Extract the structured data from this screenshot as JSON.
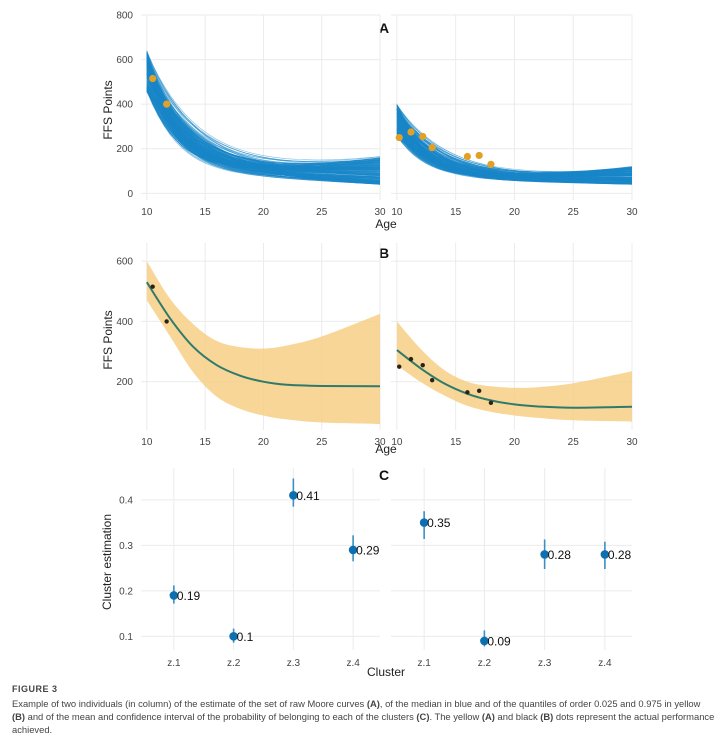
{
  "chart_data": [
    {
      "panel": "A",
      "type": "line",
      "title": "A",
      "xlabel": "Age",
      "ylabel": "FFS Points",
      "xlim": [
        9.5,
        30
      ],
      "ylim": [
        -30,
        800
      ],
      "xticks": [
        "10",
        "15",
        "20",
        "25",
        "30"
      ],
      "yticks": [
        "0",
        "200",
        "400",
        "600",
        "800"
      ],
      "description_series": "set of raw Moore curves (blue)",
      "facets": [
        {
          "observed_points": [
            {
              "x": 10.5,
              "y": 515
            },
            {
              "x": 11.7,
              "y": 400
            }
          ],
          "curve_band": {
            "start": [
              455,
              640
            ],
            "base": [
              105,
              95
            ],
            "end_low": [
              40,
              130
            ],
            "end_high": [
              160,
              800
            ]
          }
        },
        {
          "observed_points": [
            {
              "x": 10.2,
              "y": 250
            },
            {
              "x": 11.2,
              "y": 275
            },
            {
              "x": 12.2,
              "y": 255
            },
            {
              "x": 13.0,
              "y": 205
            },
            {
              "x": 16.0,
              "y": 165
            },
            {
              "x": 17.0,
              "y": 170
            },
            {
              "x": 18.0,
              "y": 130
            }
          ],
          "curve_band": {
            "start": [
              255,
              400
            ],
            "base": [
              70,
              60
            ],
            "end_low": [
              40,
              60
            ],
            "end_high": [
              120,
              380
            ]
          }
        }
      ]
    },
    {
      "panel": "B",
      "type": "area",
      "title": "B",
      "xlabel": "Age",
      "ylabel": "FFS Points",
      "xlim": [
        9.5,
        30
      ],
      "ylim": [
        40,
        660
      ],
      "xticks": [
        "10",
        "15",
        "20",
        "25",
        "30"
      ],
      "yticks": [
        "200",
        "400",
        "600"
      ],
      "facets": [
        {
          "median": [
            {
              "x": 10,
              "y": 530
            },
            {
              "x": 12,
              "y": 410
            },
            {
              "x": 14,
              "y": 315
            },
            {
              "x": 16,
              "y": 255
            },
            {
              "x": 18,
              "y": 220
            },
            {
              "x": 20,
              "y": 200
            },
            {
              "x": 22,
              "y": 190
            },
            {
              "x": 25,
              "y": 186
            },
            {
              "x": 30,
              "y": 185
            }
          ],
          "q025": [
            {
              "x": 10,
              "y": 470
            },
            {
              "x": 12,
              "y": 350
            },
            {
              "x": 14,
              "y": 230
            },
            {
              "x": 16,
              "y": 150
            },
            {
              "x": 18,
              "y": 110
            },
            {
              "x": 20,
              "y": 88
            },
            {
              "x": 22,
              "y": 75
            },
            {
              "x": 25,
              "y": 65
            },
            {
              "x": 30,
              "y": 60
            }
          ],
          "q975": [
            {
              "x": 10,
              "y": 600
            },
            {
              "x": 12,
              "y": 475
            },
            {
              "x": 14,
              "y": 390
            },
            {
              "x": 16,
              "y": 335
            },
            {
              "x": 18,
              "y": 315
            },
            {
              "x": 20,
              "y": 310
            },
            {
              "x": 22,
              "y": 320
            },
            {
              "x": 25,
              "y": 350
            },
            {
              "x": 30,
              "y": 425
            }
          ],
          "observed_points": [
            {
              "x": 10.5,
              "y": 515
            },
            {
              "x": 11.7,
              "y": 400
            }
          ]
        },
        {
          "median": [
            {
              "x": 10,
              "y": 305
            },
            {
              "x": 12,
              "y": 245
            },
            {
              "x": 14,
              "y": 195
            },
            {
              "x": 16,
              "y": 160
            },
            {
              "x": 18,
              "y": 138
            },
            {
              "x": 20,
              "y": 125
            },
            {
              "x": 22,
              "y": 118
            },
            {
              "x": 25,
              "y": 114
            },
            {
              "x": 30,
              "y": 117
            }
          ],
          "q025": [
            {
              "x": 10,
              "y": 255
            },
            {
              "x": 12,
              "y": 200
            },
            {
              "x": 14,
              "y": 155
            },
            {
              "x": 16,
              "y": 120
            },
            {
              "x": 18,
              "y": 100
            },
            {
              "x": 20,
              "y": 88
            },
            {
              "x": 22,
              "y": 80
            },
            {
              "x": 25,
              "y": 72
            },
            {
              "x": 30,
              "y": 68
            }
          ],
          "q975": [
            {
              "x": 10,
              "y": 400
            },
            {
              "x": 12,
              "y": 310
            },
            {
              "x": 14,
              "y": 240
            },
            {
              "x": 16,
              "y": 200
            },
            {
              "x": 18,
              "y": 185
            },
            {
              "x": 20,
              "y": 180
            },
            {
              "x": 22,
              "y": 182
            },
            {
              "x": 25,
              "y": 195
            },
            {
              "x": 30,
              "y": 235
            }
          ],
          "observed_points": [
            {
              "x": 10.2,
              "y": 250
            },
            {
              "x": 11.2,
              "y": 275
            },
            {
              "x": 12.2,
              "y": 255
            },
            {
              "x": 13.0,
              "y": 205
            },
            {
              "x": 16.0,
              "y": 165
            },
            {
              "x": 17.0,
              "y": 170
            },
            {
              "x": 18.0,
              "y": 130
            }
          ]
        }
      ]
    },
    {
      "panel": "C",
      "type": "scatter",
      "title": "C",
      "xlabel": "Cluster",
      "ylabel": "Cluster estimation",
      "ylim": [
        0.07,
        0.47
      ],
      "yticks": [
        "0.1",
        "0.2",
        "0.3",
        "0.4"
      ],
      "categories": [
        "z.1",
        "z.2",
        "z.3",
        "z.4"
      ],
      "facets": [
        {
          "values": [
            0.19,
            0.1,
            0.41,
            0.29
          ],
          "labels": [
            "0.19",
            "0.1",
            "0.41",
            "0.29"
          ],
          "ci_low": [
            0.172,
            0.086,
            0.385,
            0.265
          ],
          "ci_high": [
            0.212,
            0.117,
            0.447,
            0.322
          ]
        },
        {
          "values": [
            0.35,
            0.09,
            0.28,
            0.28
          ],
          "labels": [
            "0.35",
            "0.09",
            "0.28",
            "0.28"
          ],
          "ci_low": [
            0.314,
            0.078,
            0.248,
            0.248
          ],
          "ci_high": [
            0.375,
            0.113,
            0.313,
            0.308
          ]
        }
      ]
    }
  ],
  "colors": {
    "curves": "#1a86c8",
    "median": "#2f7a6a",
    "quantile_band": "#f6cf85",
    "yellow_dot": "#e0a126",
    "black_dot": "#2b2416",
    "estimate": "#0d6fb0",
    "grid": "#ebebeb"
  },
  "caption": {
    "label": "FIGURE 3",
    "text_1": "Example of two individuals (in column) of the estimate of the set of raw Moore curves ",
    "ref_a": "(A)",
    "text_2": ", of the median in blue and of the quantiles of order 0.025 and 0.975 in yellow ",
    "ref_b": "(B)",
    "text_3": " and of the mean and confidence interval of the probability of belonging to each of the clusters ",
    "ref_c": "(C)",
    "text_4": ". The yellow ",
    "ref_a2": "(A)",
    "text_5": " and black ",
    "ref_b2": "(B)",
    "text_6": " dots represent the actual performance achieved."
  }
}
